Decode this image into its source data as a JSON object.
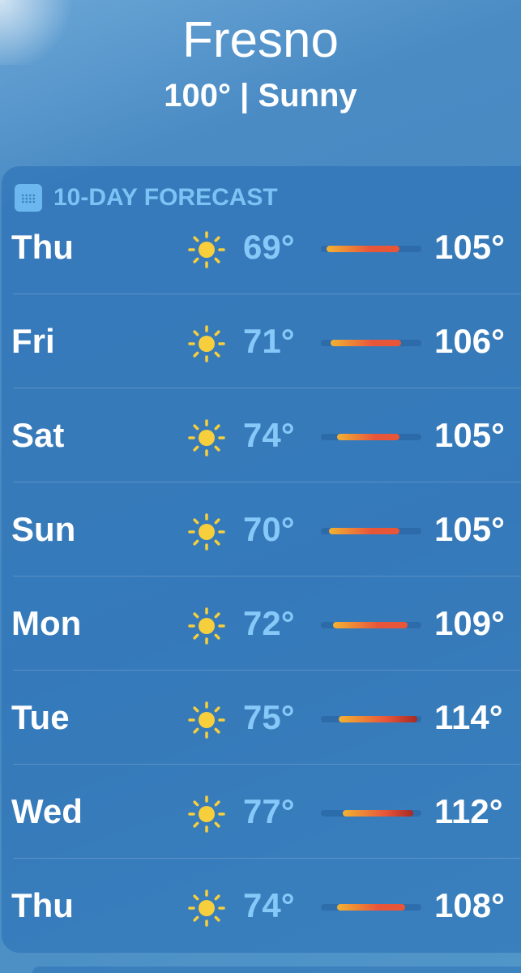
{
  "location": {
    "city": "Fresno",
    "current_temp": "100°",
    "condition": "Sunny",
    "summary": "100° | Sunny"
  },
  "forecast": {
    "title": "10-DAY FORECAST",
    "icon": "calendar-icon",
    "range_colors": [
      "#f2b233",
      "#e8563a",
      "#a52a24"
    ],
    "days": [
      {
        "day": "Thu",
        "icon": "sun-icon",
        "low": "69°",
        "high": "105°",
        "low_val": 69,
        "high_val": 105
      },
      {
        "day": "Fri",
        "icon": "sun-icon",
        "low": "71°",
        "high": "106°",
        "low_val": 71,
        "high_val": 106
      },
      {
        "day": "Sat",
        "icon": "sun-icon",
        "low": "74°",
        "high": "105°",
        "low_val": 74,
        "high_val": 105
      },
      {
        "day": "Sun",
        "icon": "sun-icon",
        "low": "70°",
        "high": "105°",
        "low_val": 70,
        "high_val": 105
      },
      {
        "day": "Mon",
        "icon": "sun-icon",
        "low": "72°",
        "high": "109°",
        "low_val": 72,
        "high_val": 109
      },
      {
        "day": "Tue",
        "icon": "sun-icon",
        "low": "75°",
        "high": "114°",
        "low_val": 75,
        "high_val": 114
      },
      {
        "day": "Wed",
        "icon": "sun-icon",
        "low": "77°",
        "high": "112°",
        "low_val": 77,
        "high_val": 112
      },
      {
        "day": "Thu",
        "icon": "sun-icon",
        "low": "74°",
        "high": "108°",
        "low_val": 74,
        "high_val": 108
      }
    ]
  }
}
